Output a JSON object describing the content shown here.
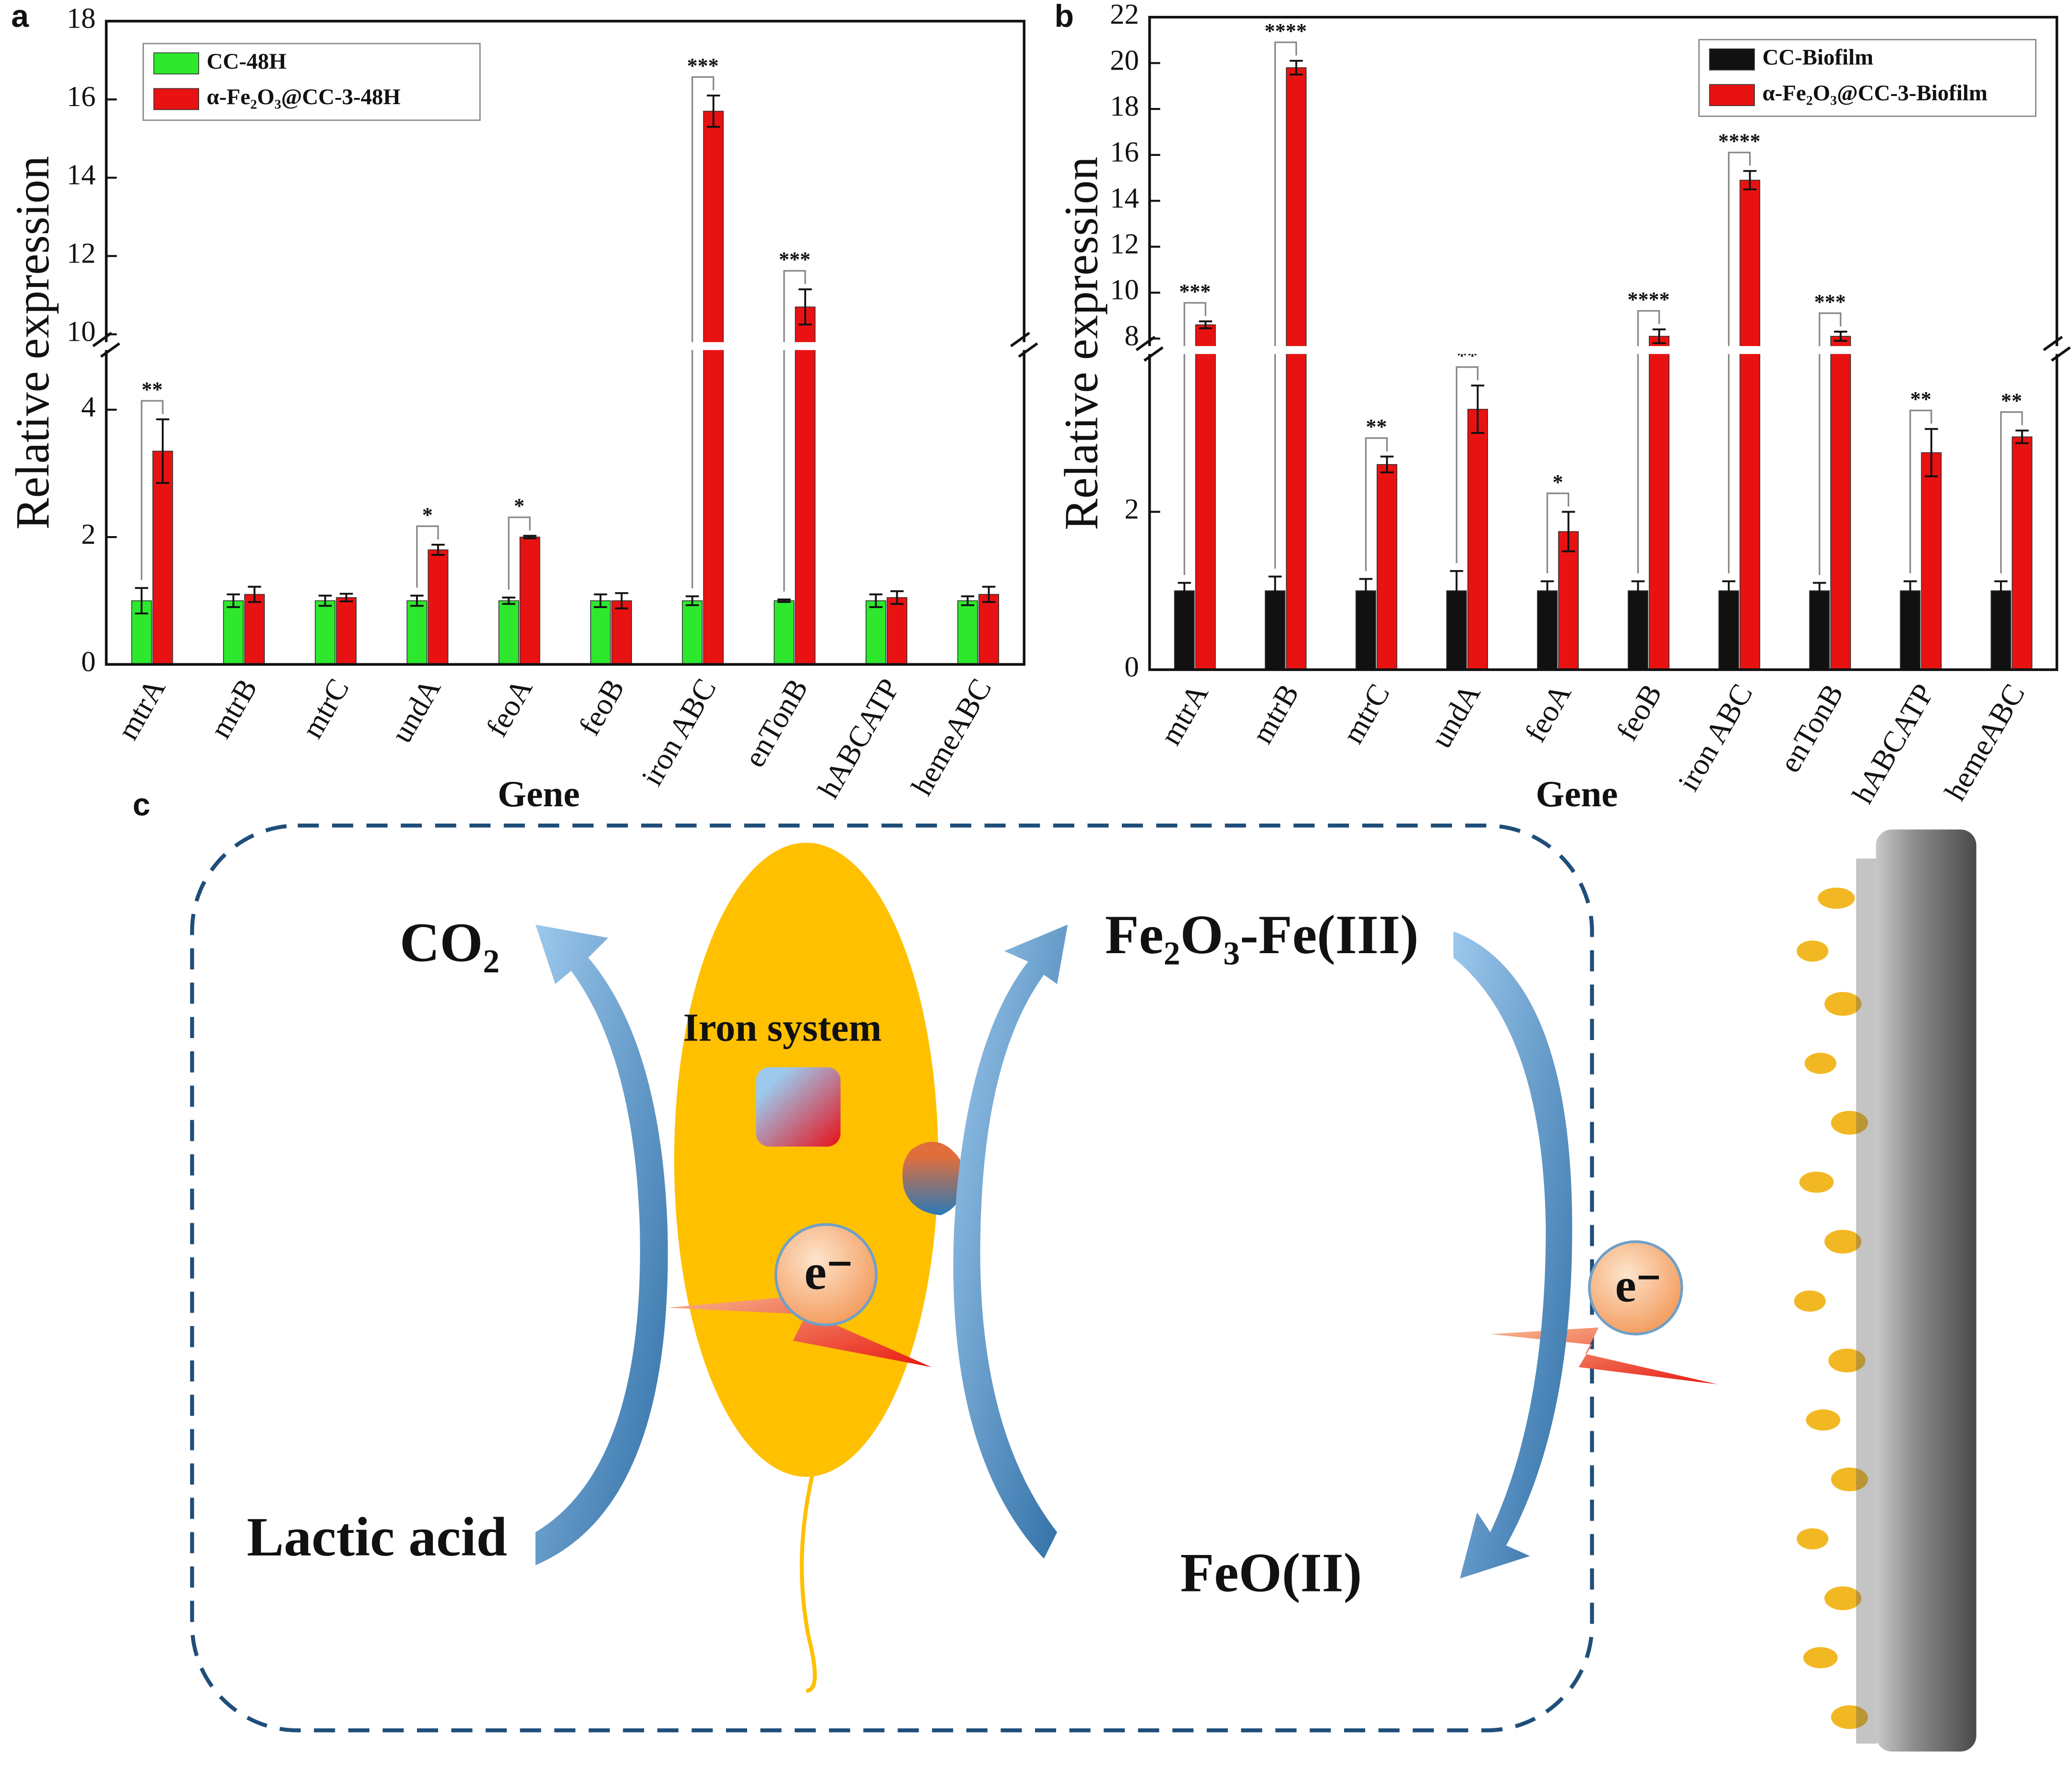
{
  "chart_data": [
    {
      "type": "bar",
      "panel": "a",
      "x_label": "Gene",
      "y_label": "Relative expression",
      "categories": [
        "mtrA",
        "mtrB",
        "mtrC",
        "undA",
        "feoA",
        "feoB",
        "iron ABC",
        "enTonB",
        "hABCATP",
        "hemeABC"
      ],
      "series": [
        {
          "name": "CC-48H",
          "color": "#2ee82e",
          "values": [
            1.0,
            1.0,
            1.0,
            1.0,
            1.0,
            1.0,
            1.0,
            1.0,
            1.0,
            1.0
          ],
          "errors": [
            0.2,
            0.1,
            0.08,
            0.08,
            0.05,
            0.1,
            0.07,
            0.02,
            0.1,
            0.07
          ]
        },
        {
          "name": "α-Fe₂O₃@CC-3-48H",
          "color": "#e81212",
          "values": [
            3.35,
            1.1,
            1.05,
            1.8,
            2.0,
            1.0,
            15.7,
            10.7,
            1.05,
            1.1
          ],
          "errors": [
            0.5,
            0.12,
            0.06,
            0.08,
            0.02,
            0.12,
            0.4,
            0.45,
            0.1,
            0.12
          ]
        }
      ],
      "significance": [
        "**",
        null,
        null,
        "*",
        "*",
        null,
        "***",
        "***",
        null,
        null
      ],
      "ylim": [
        0,
        18
      ],
      "ybreak": [
        5,
        9.7
      ],
      "yticks": [
        0,
        2,
        4,
        10,
        12,
        14,
        16,
        18
      ],
      "legend": "upper left"
    },
    {
      "type": "bar",
      "panel": "b",
      "x_label": "Gene",
      "y_label": "Relative expression",
      "categories": [
        "mtrA",
        "mtrB",
        "mtrC",
        "undA",
        "feoA",
        "feoB",
        "iron ABC",
        "enTonB",
        "hABCATP",
        "hemeABC"
      ],
      "series": [
        {
          "name": "CC-Biofilm",
          "color": "#111111",
          "values": [
            1.0,
            1.0,
            1.0,
            1.0,
            1.0,
            1.0,
            1.0,
            1.0,
            1.0,
            1.0
          ],
          "errors": [
            0.1,
            0.18,
            0.15,
            0.25,
            0.12,
            0.12,
            0.12,
            0.1,
            0.12,
            0.12
          ]
        },
        {
          "name": "α-Fe₂O₃@CC-3-Biofilm",
          "color": "#e81212",
          "values": [
            8.6,
            19.8,
            2.6,
            3.3,
            1.75,
            8.1,
            14.9,
            8.1,
            2.75,
            2.95
          ],
          "errors": [
            0.15,
            0.3,
            0.1,
            0.3,
            0.25,
            0.3,
            0.4,
            0.2,
            0.3,
            0.08
          ]
        }
      ],
      "significance": [
        "***",
        "****",
        "**",
        "**",
        "*",
        "****",
        "****",
        "***",
        "**",
        "**"
      ],
      "ylim": [
        0,
        22
      ],
      "ybreak": [
        4.05,
        7.5
      ],
      "yticks": [
        0,
        2,
        8,
        10,
        12,
        14,
        16,
        18,
        20,
        22
      ],
      "legend": "upper right"
    }
  ],
  "diagram": {
    "panel": "c",
    "co2": "CO₂",
    "iron_system": "Iron system",
    "fe3": "Fe₂O₃-Fe(III)",
    "lactic": "Lactic acid",
    "fe2": "FeO(II)",
    "electron_inside": "e⁻",
    "electron_outside": "e⁻"
  }
}
